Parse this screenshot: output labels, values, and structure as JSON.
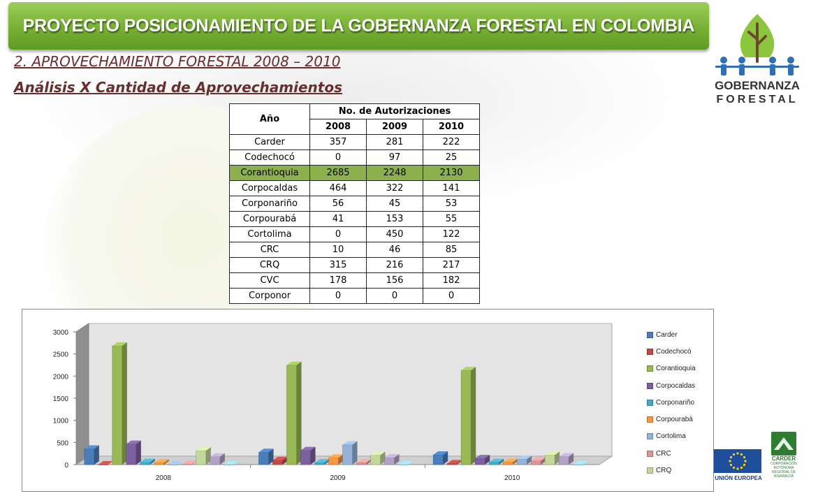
{
  "header": {
    "banner_title": "PROYECTO POSICIONAMIENTO DE LA GOBERNANZA FORESTAL EN COLOMBIA",
    "section_title": "2. APROVECHAMIENTO FORESTAL 2008 – 2010",
    "subtitle": "Análisis X Cantidad de Aprovechamientos"
  },
  "logo": {
    "line1": "GOBERNANZA",
    "line2": "FORESTAL"
  },
  "footer_logos": {
    "eu": "UNIÓN EUROPEA",
    "carder": "CARDER",
    "carder_sub": "CORPORACIÓN AUTÓNOMA REGIONAL DE RISARALDA"
  },
  "table": {
    "col_year": "Año",
    "col_group": "No. de Autorizaciones",
    "years": [
      "2008",
      "2009",
      "2010"
    ],
    "rows": [
      {
        "name": "Carder",
        "v": [
          "357",
          "281",
          "222"
        ]
      },
      {
        "name": "Codechocó",
        "v": [
          "0",
          "97",
          "25"
        ]
      },
      {
        "name": "Corantioquia",
        "v": [
          "2685",
          "2248",
          "2130"
        ]
      },
      {
        "name": "Corpocaldas",
        "v": [
          "464",
          "322",
          "141"
        ]
      },
      {
        "name": "Corponariño",
        "v": [
          "56",
          "45",
          "53"
        ]
      },
      {
        "name": "Corpourabá",
        "v": [
          "41",
          "153",
          "55"
        ]
      },
      {
        "name": "Cortolima",
        "v": [
          "0",
          "450",
          "122"
        ]
      },
      {
        "name": "CRC",
        "v": [
          "10",
          "46",
          "85"
        ]
      },
      {
        "name": "CRQ",
        "v": [
          "315",
          "216",
          "217"
        ]
      },
      {
        "name": "CVC",
        "v": [
          "178",
          "156",
          "182"
        ]
      },
      {
        "name": "Corponor",
        "v": [
          "0",
          "0",
          "0"
        ]
      }
    ]
  },
  "chart_data": {
    "type": "bar",
    "categories": [
      "2008",
      "2009",
      "2010"
    ],
    "ylim": [
      0,
      3000
    ],
    "yticks": [
      0,
      500,
      1000,
      1500,
      2000,
      2500,
      3000
    ],
    "legend_position": "right",
    "grid": false,
    "series": [
      {
        "name": "Carder",
        "values": [
          357,
          281,
          222
        ],
        "color": "#4a7ebb"
      },
      {
        "name": "Codechocó",
        "values": [
          0,
          97,
          25
        ],
        "color": "#be4b48"
      },
      {
        "name": "Corantioquia",
        "values": [
          2685,
          2248,
          2130
        ],
        "color": "#98b954"
      },
      {
        "name": "Corpocaldas",
        "values": [
          464,
          322,
          141
        ],
        "color": "#7d60a0"
      },
      {
        "name": "Corponariño",
        "values": [
          56,
          45,
          53
        ],
        "color": "#46aac5"
      },
      {
        "name": "Corpourabá",
        "values": [
          41,
          153,
          55
        ],
        "color": "#f79646"
      },
      {
        "name": "Cortolima",
        "values": [
          0,
          450,
          122
        ],
        "color": "#95b3d7"
      },
      {
        "name": "CRC",
        "values": [
          10,
          46,
          85
        ],
        "color": "#d99694"
      },
      {
        "name": "CRQ",
        "values": [
          315,
          216,
          217
        ],
        "color": "#c3d69b"
      },
      {
        "name": "CVC",
        "values": [
          178,
          156,
          182
        ],
        "color": "#b2a2c7"
      },
      {
        "name": "Corponor",
        "values": [
          0,
          0,
          0
        ],
        "color": "#93cddd"
      }
    ],
    "legend_visible": [
      "Carder",
      "Codechocó",
      "Corantioquia",
      "Corpocaldas",
      "Corponariño",
      "Corpourabá",
      "Cortolima",
      "CRC",
      "CRQ"
    ]
  }
}
